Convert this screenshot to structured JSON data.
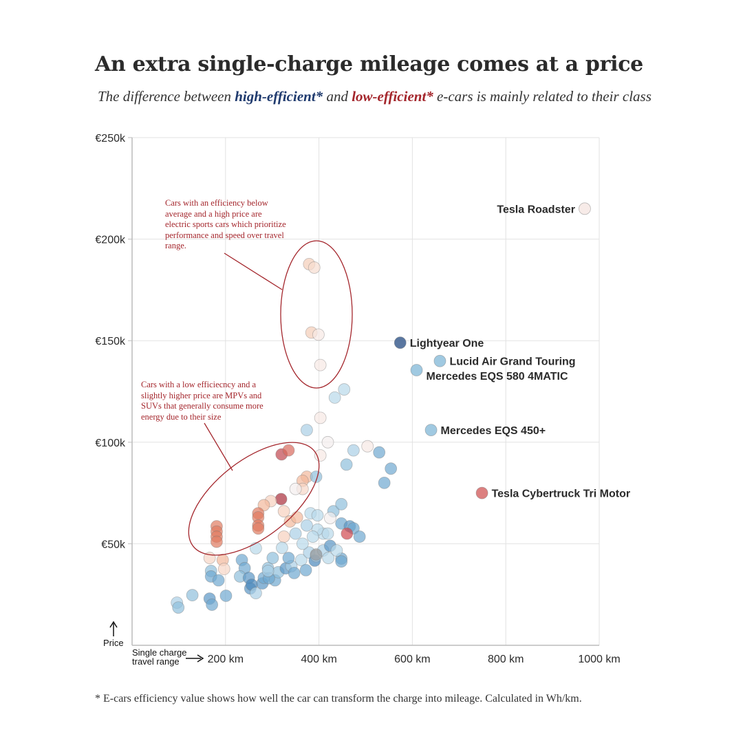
{
  "title": "An extra single-charge mileage comes at a price",
  "subtitle": {
    "pre": "The difference between ",
    "high": "high-efficient*",
    "mid": " and ",
    "low": "low-efficient*",
    "post": " e-cars is mainly related to their class"
  },
  "footnote": "* E-cars efficiency value shows how well the car can transform the charge into mileage. Calculated in Wh/km.",
  "colors": {
    "high": "#1f3a6e",
    "low": "#a4262c"
  },
  "chart_data": {
    "type": "scatter",
    "xlabel": "Single charge travel range",
    "ylabel": "Price",
    "xlim": [
      0,
      1000
    ],
    "ylim": [
      0,
      250000
    ],
    "x_ticks": [
      {
        "v": 200,
        "label": "200 km"
      },
      {
        "v": 400,
        "label": "400 km"
      },
      {
        "v": 600,
        "label": "600 km"
      },
      {
        "v": 800,
        "label": "800 km"
      },
      {
        "v": 1000,
        "label": "1000 km"
      }
    ],
    "y_ticks": [
      {
        "v": 50000,
        "label": "€50k"
      },
      {
        "v": 100000,
        "label": "€100k"
      },
      {
        "v": 150000,
        "label": "€150k"
      },
      {
        "v": 200000,
        "label": "€200k"
      },
      {
        "v": 250000,
        "label": "€250k"
      }
    ],
    "grid": true,
    "labeled_points": [
      {
        "name": "Tesla Roadster",
        "x": 969,
        "y": 215000,
        "color": "#f6e8e4",
        "label_side": "left"
      },
      {
        "name": "Lightyear One",
        "x": 574,
        "y": 149000,
        "color": "#3d5f8f",
        "label_side": "right"
      },
      {
        "name": "Lucid Air Grand Touring",
        "x": 659,
        "y": 140000,
        "color": "#8fbfdc",
        "label_side": "right"
      },
      {
        "name": "Mercedes EQS 580 4MATIC",
        "x": 609,
        "y": 135500,
        "color": "#8fbfdc",
        "label_side": "right-below"
      },
      {
        "name": "Mercedes EQS 450+",
        "x": 640,
        "y": 106000,
        "color": "#8fbfdc",
        "label_side": "right"
      },
      {
        "name": "Tesla Cybertruck Tri Motor",
        "x": 749,
        "y": 75000,
        "color": "#d66a6a",
        "label_side": "right"
      }
    ],
    "points": [
      [
        379,
        187700,
        "#f4cdb8"
      ],
      [
        390,
        186000,
        "#f6ddd0"
      ],
      [
        384,
        154000,
        "#f4cdb8"
      ],
      [
        399,
        153000,
        "#f6e8e4"
      ],
      [
        403,
        138000,
        "#f6e8e4"
      ],
      [
        454,
        126000,
        "#b8d8ea"
      ],
      [
        434,
        122000,
        "#b8d8ea"
      ],
      [
        403,
        112000,
        "#f6e8e4"
      ],
      [
        374,
        106000,
        "#a9cfe5"
      ],
      [
        419,
        100000,
        "#f3eeee"
      ],
      [
        474,
        96000,
        "#a9cfe5"
      ],
      [
        504,
        98000,
        "#f6e8e4"
      ],
      [
        529,
        95000,
        "#6fa8d0"
      ],
      [
        459,
        89000,
        "#8fbfdc"
      ],
      [
        554,
        87000,
        "#6fa8d0"
      ],
      [
        540,
        80000,
        "#6fa8d0"
      ],
      [
        403,
        93500,
        "#f6e8e4"
      ],
      [
        320,
        94000,
        "#c0464f"
      ],
      [
        335,
        96000,
        "#d86a5c"
      ],
      [
        374,
        83000,
        "#f2b89b"
      ],
      [
        365,
        81000,
        "#f2b89b"
      ],
      [
        365,
        77000,
        "#f6d6c6"
      ],
      [
        350,
        77000,
        "#f3eeee"
      ],
      [
        394,
        83000,
        "#8fbfdc"
      ],
      [
        319,
        72000,
        "#a92e3a"
      ],
      [
        297,
        71000,
        "#f6d0bd"
      ],
      [
        282,
        69000,
        "#f2b89b"
      ],
      [
        270,
        65000,
        "#e07a5f"
      ],
      [
        270,
        63000,
        "#e07a5f"
      ],
      [
        270,
        59000,
        "#e07a5f"
      ],
      [
        270,
        57500,
        "#e07a5f"
      ],
      [
        181,
        58600,
        "#e07a5f"
      ],
      [
        181,
        56000,
        "#e07a5f"
      ],
      [
        181,
        53500,
        "#e07a5f"
      ],
      [
        181,
        51000,
        "#e07a5f"
      ],
      [
        325,
        66000,
        "#f6d0bd"
      ],
      [
        338,
        61000,
        "#f2b89b"
      ],
      [
        325,
        53500,
        "#f6d0bd"
      ],
      [
        166,
        43000,
        "#f6d6c6"
      ],
      [
        194,
        42000,
        "#f2b89b"
      ],
      [
        197,
        37600,
        "#f6d6c6"
      ],
      [
        96,
        21000,
        "#a9cfe5"
      ],
      [
        99,
        18600,
        "#8fbfdc"
      ],
      [
        129,
        24700,
        "#8fbfdc"
      ],
      [
        166,
        23000,
        "#5a95c4"
      ],
      [
        171,
        20000,
        "#6fa8d0"
      ],
      [
        201,
        24400,
        "#6fa8d0"
      ],
      [
        169,
        36600,
        "#8fbfdc"
      ],
      [
        169,
        33900,
        "#6fa8d0"
      ],
      [
        185,
        32000,
        "#6fa8d0"
      ],
      [
        265,
        47800,
        "#b8d8ea"
      ],
      [
        235,
        42000,
        "#6fa8d0"
      ],
      [
        241,
        38000,
        "#6fa8d0"
      ],
      [
        231,
        33900,
        "#8fbfdc"
      ],
      [
        250,
        33200,
        "#5a95c4"
      ],
      [
        253,
        28000,
        "#5a95c4"
      ],
      [
        256,
        29800,
        "#4a87bb"
      ],
      [
        265,
        25700,
        "#a9cfe5"
      ],
      [
        279,
        30500,
        "#5a95c4"
      ],
      [
        282,
        33200,
        "#6fa8d0"
      ],
      [
        291,
        38000,
        "#8fbfdc"
      ],
      [
        301,
        43000,
        "#8fbfdc"
      ],
      [
        306,
        32000,
        "#6fa8d0"
      ],
      [
        313,
        36000,
        "#8fbfdc"
      ],
      [
        329,
        37900,
        "#5a95c4"
      ],
      [
        341,
        39000,
        "#a9cfe5"
      ],
      [
        347,
        35600,
        "#6fa8d0"
      ],
      [
        335,
        43000,
        "#6fa8d0"
      ],
      [
        362,
        42000,
        "#b8d8ea"
      ],
      [
        372,
        37000,
        "#6fa8d0"
      ],
      [
        379,
        45700,
        "#a9cfe5"
      ],
      [
        391,
        41700,
        "#4a87bb"
      ],
      [
        394,
        44000,
        "#a9cfe5"
      ],
      [
        409,
        46700,
        "#a9cfe5"
      ],
      [
        420,
        43000,
        "#b8d8ea"
      ],
      [
        424,
        49000,
        "#5a95c4"
      ],
      [
        409,
        55000,
        "#b8d8ea"
      ],
      [
        397,
        57000,
        "#b8d8ea"
      ],
      [
        387,
        53500,
        "#b8d8ea"
      ],
      [
        374,
        59000,
        "#a9cfe5"
      ],
      [
        350,
        55000,
        "#a9cfe5"
      ],
      [
        365,
        50000,
        "#b8d8ea"
      ],
      [
        321,
        48000,
        "#b8d8ea"
      ],
      [
        382,
        65000,
        "#b8d8ea"
      ],
      [
        397,
        64000,
        "#b8d8ea"
      ],
      [
        431,
        66000,
        "#8fbfdc"
      ],
      [
        448,
        69500,
        "#8fbfdc"
      ],
      [
        424,
        62700,
        "#f3eeee"
      ],
      [
        448,
        60000,
        "#6fa8d0"
      ],
      [
        466,
        58600,
        "#5a95c4"
      ],
      [
        474,
        57600,
        "#6fa8d0"
      ],
      [
        487,
        53500,
        "#6fa8d0"
      ],
      [
        448,
        42700,
        "#6fa8d0"
      ],
      [
        448,
        41300,
        "#6fa8d0"
      ],
      [
        419,
        55000,
        "#b8d8ea"
      ],
      [
        438,
        46700,
        "#b8d8ea"
      ],
      [
        460,
        55000,
        "#d0484f"
      ],
      [
        394,
        44700,
        "#9a9a9a"
      ],
      [
        353,
        63000,
        "#f2b89b"
      ],
      [
        293,
        33000,
        "#6fa8d0"
      ],
      [
        291,
        36600,
        "#a9cfe5"
      ]
    ],
    "annotations": [
      {
        "text": "Cars with an efficiency below average and a high price are electric sports cars which prioritize performance and speed over travel range."
      },
      {
        "text": "Cars with a low efficiecncy and a slightly higher price are MPVs and SUVs that generally consume more energy due to their size"
      }
    ]
  }
}
